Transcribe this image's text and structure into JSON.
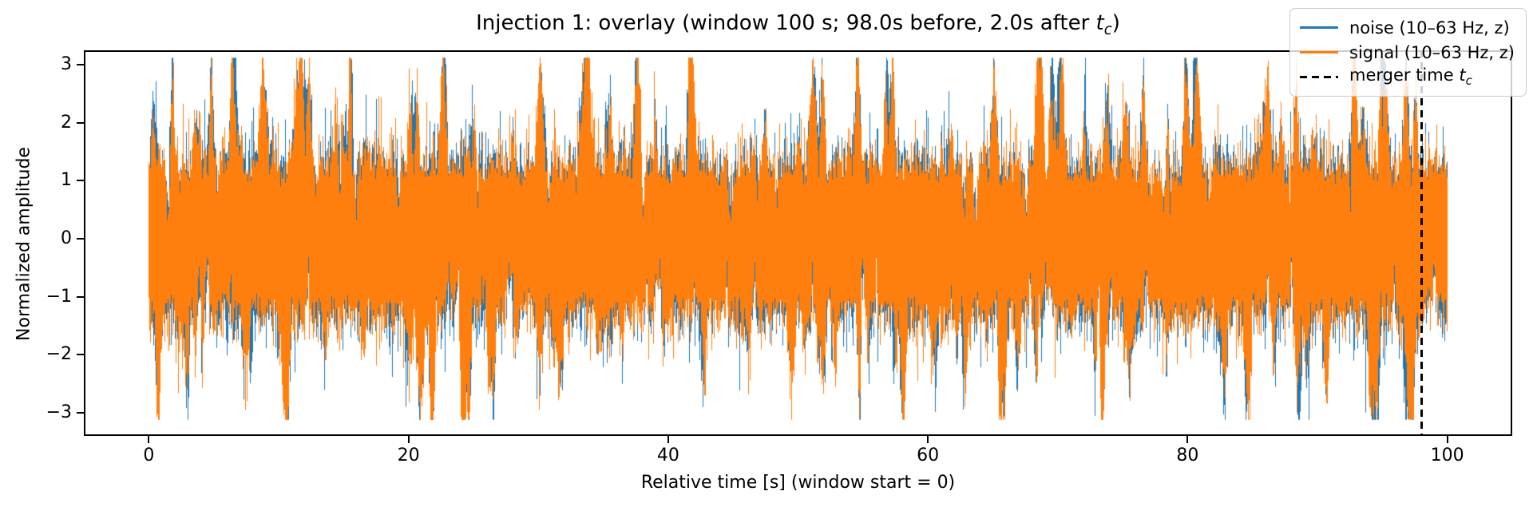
{
  "title": {
    "prefix": "Injection 1: overlay (window 100 s; 98.0s before, 2.0s after ",
    "var": "t",
    "sub": "c",
    "suffix": ")"
  },
  "axes": {
    "xlabel": "Relative time [s] (window start = 0)",
    "ylabel": "Normalized amplitude",
    "x_tick_labels": [
      "0",
      "20",
      "40",
      "60",
      "80",
      "100"
    ],
    "y_tick_labels": [
      "3",
      "2",
      "1",
      "0",
      "−1",
      "−2",
      "−3"
    ]
  },
  "legend": {
    "items": [
      {
        "label": "noise (10–63 Hz, z)",
        "color": "#1f77b4",
        "style": "solid"
      },
      {
        "label": "signal (10–63 Hz, z)",
        "color": "#ff7f0e",
        "style": "solid"
      },
      {
        "label_prefix": "merger time ",
        "var": "t",
        "sub": "c",
        "color": "#000000",
        "style": "dashed"
      }
    ]
  },
  "colors": {
    "noise": "#1f77b4",
    "signal": "#ff7f0e",
    "merger_line": "#000000",
    "axis": "#000000",
    "legend_border": "#cccccc"
  },
  "chart_data": {
    "type": "line",
    "title": "Injection 1: overlay (window 100 s; 98.0s before, 2.0s after t_c)",
    "xlabel": "Relative time [s] (window start = 0)",
    "ylabel": "Normalized amplitude",
    "xlim": [
      -5,
      105
    ],
    "ylim": [
      -3.4,
      3.25
    ],
    "x_ticks": [
      0,
      20,
      40,
      60,
      80,
      100
    ],
    "y_ticks": [
      3,
      2,
      1,
      0,
      -1,
      -2,
      -3
    ],
    "grid": false,
    "legend_position": "upper right",
    "window_s": 100,
    "seconds_before_tc": 98.0,
    "seconds_after_tc": 2.0,
    "merger_time_s": 98.0,
    "data_x_range_s": [
      0,
      100
    ],
    "series": [
      {
        "name": "noise (10–63 Hz, z)",
        "color": "#1f77b4",
        "kind": "band-limited (10–63 Hz) whitened noise, z-scored",
        "mean": 0,
        "std": 1,
        "typical_extent": [
          -2,
          2
        ],
        "peak_extent": [
          -3.1,
          3.0
        ]
      },
      {
        "name": "signal (10–63 Hz, z)",
        "color": "#ff7f0e",
        "kind": "noise + injected signal, band-limited (10–63 Hz), z-scored; visually overlapping the noise trace",
        "mean": 0,
        "std": 1,
        "typical_extent": [
          -2,
          2
        ],
        "peak_extent": [
          -3.1,
          3.0
        ]
      }
    ],
    "vline": {
      "x": 98.0,
      "color": "#000000",
      "style": "dashed",
      "label": "merger time t_c"
    },
    "noise_render": {
      "seed": 7,
      "spike_rate": 0.05,
      "notch_rate": 0.022,
      "core_band": 1.0,
      "max_amp": 3.12,
      "min_amp": 0.32
    }
  }
}
